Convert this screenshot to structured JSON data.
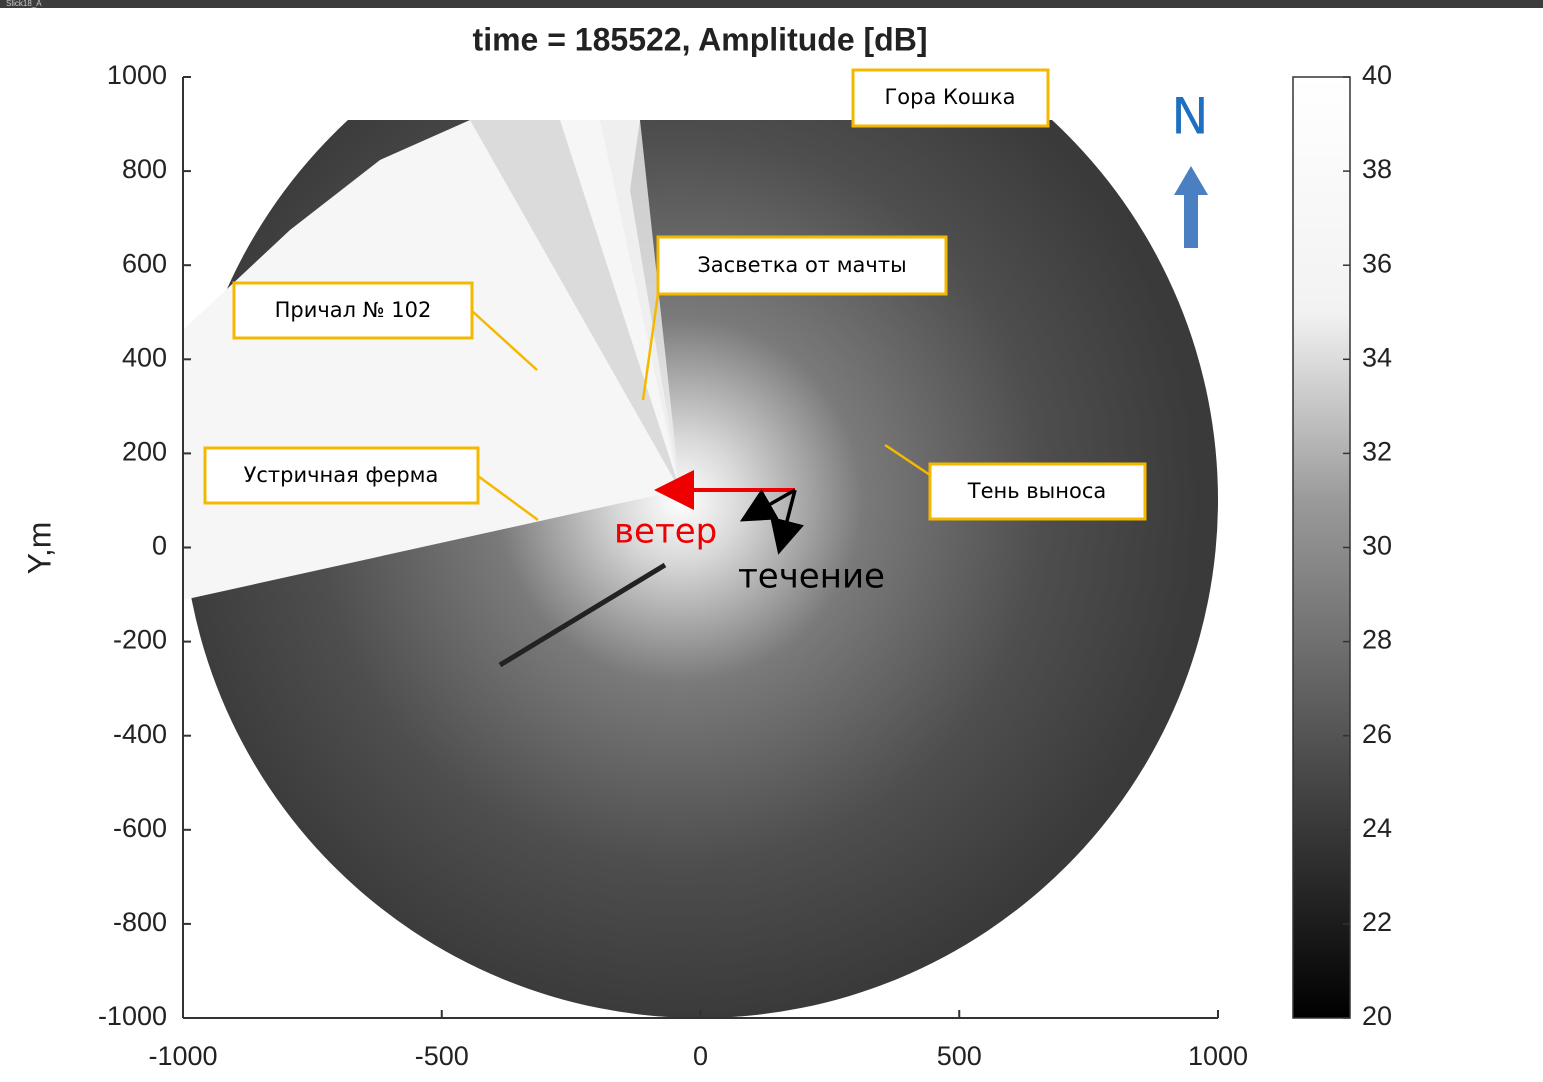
{
  "window_title": "Slick18_A",
  "chart_data": {
    "type": "image",
    "title": "time = 185522, Amplitude [dB]",
    "ylabel": "Y,m",
    "xlim": [
      -1000,
      1000
    ],
    "xticks": [
      -1000,
      -500,
      0,
      500,
      1000
    ],
    "ylim": [
      -1000,
      1000
    ],
    "yticks": [
      -1000,
      -800,
      -600,
      -400,
      -200,
      0,
      200,
      400,
      600,
      800,
      1000
    ],
    "colorbar": {
      "lim": [
        20,
        40
      ],
      "ticks": [
        20,
        22,
        24,
        26,
        28,
        30,
        32,
        34,
        36,
        38,
        40
      ]
    },
    "annotations": [
      "Гора Кошка",
      "Засветка от мачты",
      "Причал № 102",
      "Устричная ферма",
      "Тень выноса",
      "ветер",
      "течение",
      "N"
    ]
  }
}
